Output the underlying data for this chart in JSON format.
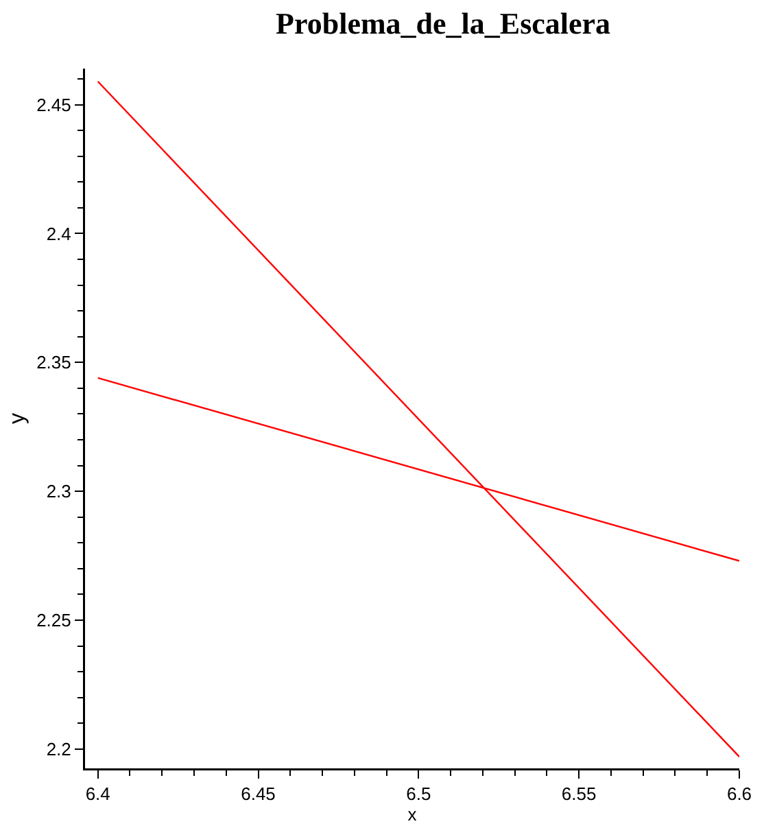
{
  "chart_data": {
    "type": "line",
    "title": "Problema_de_la_Escalera",
    "xlabel": "x",
    "ylabel": "y",
    "x": [
      6.4,
      6.6
    ],
    "series": [
      {
        "color": "#ff0000",
        "values": [
          2.459,
          2.197
        ]
      },
      {
        "color": "#ff0000",
        "values": [
          2.344,
          2.273
        ]
      }
    ],
    "xlim": [
      6.396,
      6.6
    ],
    "ylim": [
      2.1925,
      2.464
    ],
    "xticks": [
      6.4,
      6.45,
      6.5,
      6.55,
      6.6
    ],
    "yticks": [
      2.2,
      2.25,
      2.3,
      2.35,
      2.4,
      2.45
    ],
    "grid": false,
    "marker": "none",
    "line_style": "solid"
  }
}
